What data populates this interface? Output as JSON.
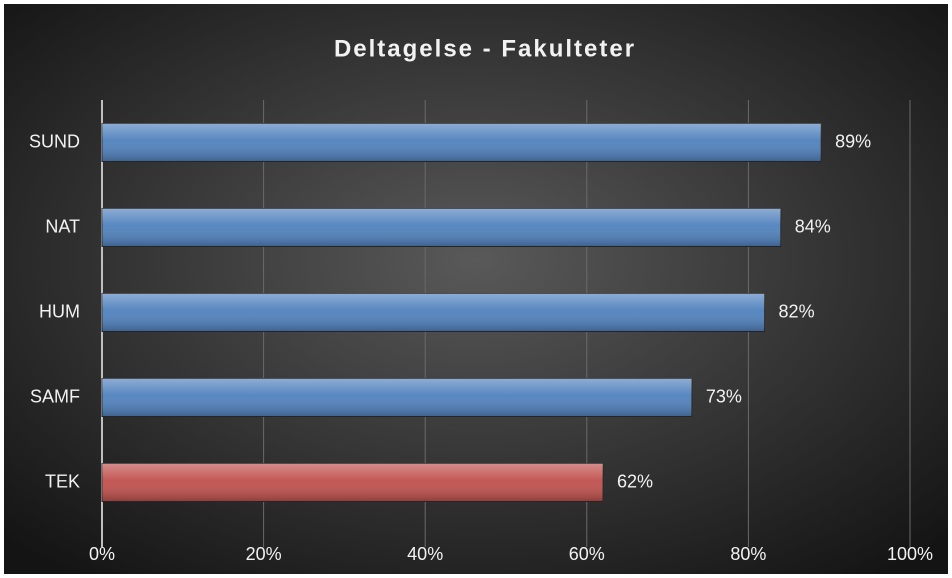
{
  "chart_data": {
    "type": "bar",
    "orientation": "horizontal",
    "title": "Deltagelse - Fakulteter",
    "categories": [
      "SUND",
      "NAT",
      "HUM",
      "SAMF",
      "TEK"
    ],
    "values": [
      89,
      84,
      82,
      73,
      62
    ],
    "value_labels": [
      "89%",
      "84%",
      "82%",
      "73%",
      "62%"
    ],
    "colors": [
      "#4f81bd",
      "#4f81bd",
      "#4f81bd",
      "#4f81bd",
      "#c0504d"
    ],
    "xlim": [
      0,
      100
    ],
    "xticks": [
      {
        "value": 0,
        "label": "0%"
      },
      {
        "value": 20,
        "label": "20%"
      },
      {
        "value": 40,
        "label": "40%"
      },
      {
        "value": 60,
        "label": "60%"
      },
      {
        "value": 80,
        "label": "80%"
      },
      {
        "value": 100,
        "label": "100%"
      }
    ],
    "grid": true
  }
}
